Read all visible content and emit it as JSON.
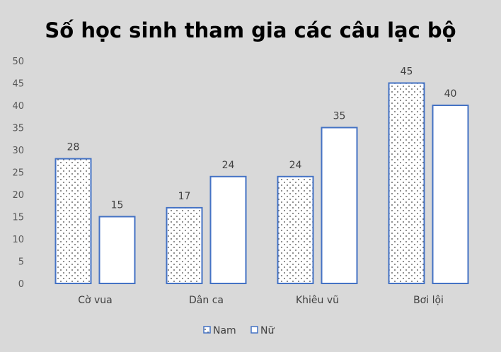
{
  "chart_data": {
    "type": "bar",
    "title": "Số học sinh tham gia các câu lạc bộ",
    "xlabel": "",
    "ylabel": "",
    "categories": [
      "Cờ vua",
      "Dân ca",
      "Khiêu vũ",
      "Bơi lội"
    ],
    "series": [
      {
        "name": "Nam",
        "values": [
          28,
          17,
          24,
          45
        ],
        "pattern": "dots"
      },
      {
        "name": "Nữ",
        "values": [
          15,
          24,
          35,
          40
        ],
        "pattern": "plain"
      }
    ],
    "ylim": [
      0,
      50
    ],
    "yticks": [
      0,
      5,
      10,
      15,
      20,
      25,
      30,
      35,
      40,
      45,
      50
    ],
    "grid": false,
    "legend_position": "bottom",
    "colors": {
      "background": "#d9d9d9",
      "bar_outline": "#4472c4",
      "bar_fill": "#ffffff",
      "dot": "#404040"
    }
  }
}
